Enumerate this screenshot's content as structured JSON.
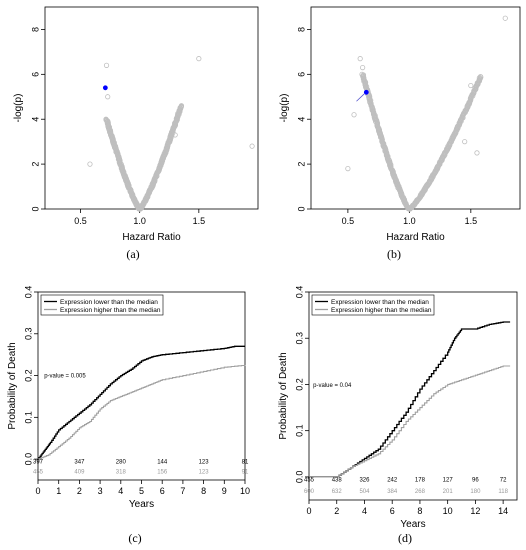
{
  "panels": [
    {
      "caption": "(a)"
    },
    {
      "caption": "(b)"
    },
    {
      "caption": "(c)"
    },
    {
      "caption": "(d)"
    }
  ],
  "chart_data": [
    {
      "type": "scatter",
      "panel": "a",
      "xlabel": "Hazard Ratio",
      "ylabel": "-log(p)",
      "xlim": [
        0.2,
        2.0
      ],
      "ylim": [
        0,
        9
      ],
      "xticks": [
        "0.5",
        "1.0",
        "1.5"
      ],
      "xtick_values": [
        0.5,
        1.0,
        1.5
      ],
      "yticks": [
        "0",
        "2",
        "4",
        "6",
        "8"
      ],
      "ytick_values": [
        0,
        2,
        4,
        6,
        8
      ],
      "v_shape": {
        "center": 1.0,
        "left_end": [
          0.72,
          4.0
        ],
        "right_end": [
          1.35,
          4.6
        ]
      },
      "outliers": [
        [
          0.58,
          2.0
        ],
        [
          0.72,
          6.4
        ],
        [
          0.73,
          5.0
        ],
        [
          0.9,
          1.0
        ],
        [
          1.5,
          6.7
        ],
        [
          1.95,
          2.8
        ],
        [
          1.3,
          3.3
        ]
      ],
      "highlight": {
        "x": 0.71,
        "y": 5.4,
        "color": "#0000ff"
      },
      "point_color": "#bfbfbf"
    },
    {
      "type": "scatter",
      "panel": "b",
      "xlabel": "Hazard Ratio",
      "ylabel": "-log(p)",
      "xlim": [
        0.2,
        1.9
      ],
      "ylim": [
        0,
        9
      ],
      "xticks": [
        "0.5",
        "1.0",
        "1.5"
      ],
      "xtick_values": [
        0.5,
        1.0,
        1.5
      ],
      "yticks": [
        "0",
        "2",
        "4",
        "6",
        "8"
      ],
      "ytick_values": [
        0,
        2,
        4,
        6,
        8
      ],
      "v_shape": {
        "center": 1.0,
        "left_end": [
          0.62,
          6.0
        ],
        "right_end": [
          1.58,
          5.9
        ]
      },
      "outliers": [
        [
          0.5,
          1.8
        ],
        [
          0.6,
          6.7
        ],
        [
          0.62,
          6.3
        ],
        [
          0.55,
          4.2
        ],
        [
          1.5,
          5.5
        ],
        [
          1.45,
          3.0
        ],
        [
          1.78,
          8.5
        ],
        [
          1.55,
          2.5
        ]
      ],
      "highlight": {
        "x": 0.65,
        "y": 5.2,
        "color": "#0000ff",
        "arrow_from": [
          0.57,
          4.8
        ]
      },
      "point_color": "#bfbfbf"
    },
    {
      "type": "line",
      "panel": "c",
      "xlabel": "Years",
      "ylabel": "Probability of Death",
      "xlim": [
        0,
        10
      ],
      "ylim": [
        -0.05,
        0.4
      ],
      "xticks": [
        "0",
        "1",
        "2",
        "3",
        "4",
        "5",
        "6",
        "7",
        "8",
        "9",
        "10"
      ],
      "yticks": [
        "0.0",
        "0.1",
        "0.2",
        "0.3",
        "0.4"
      ],
      "annotation": "p-value = 0.005",
      "legend": "top-left",
      "series": [
        {
          "name": "Expression lower than the median",
          "color": "#000000",
          "x": [
            0,
            0.3,
            0.6,
            1.0,
            1.5,
            2.0,
            2.5,
            3.0,
            3.5,
            4.0,
            4.5,
            5.0,
            5.5,
            6.0,
            7.0,
            8.0,
            9.0,
            9.5,
            10.0
          ],
          "y": [
            0,
            0.02,
            0.04,
            0.07,
            0.09,
            0.11,
            0.13,
            0.155,
            0.18,
            0.2,
            0.215,
            0.235,
            0.245,
            0.25,
            0.255,
            0.26,
            0.265,
            0.27,
            0.27
          ]
        },
        {
          "name": "Expression higher than the median",
          "color": "#a0a0a0",
          "x": [
            0,
            0.5,
            1.0,
            1.5,
            2.0,
            2.5,
            3.0,
            3.5,
            4.0,
            4.5,
            5.0,
            5.5,
            6.0,
            7.0,
            8.0,
            9.0,
            10.0
          ],
          "y": [
            0,
            0.01,
            0.03,
            0.05,
            0.075,
            0.09,
            0.12,
            0.14,
            0.15,
            0.16,
            0.17,
            0.18,
            0.19,
            0.2,
            0.21,
            0.22,
            0.225
          ]
        }
      ],
      "risk_table": {
        "x": [
          0,
          2,
          4,
          6,
          8,
          10
        ],
        "lower": [
          "397",
          "347",
          "280",
          "144",
          "123",
          "81"
        ],
        "higher": [
          "455",
          "409",
          "318",
          "156",
          "123",
          "91"
        ]
      }
    },
    {
      "type": "line",
      "panel": "d",
      "xlabel": "Years",
      "ylabel": "Probability of Death",
      "xlim": [
        0,
        15
      ],
      "ylim": [
        -0.05,
        0.4
      ],
      "xticks": [
        "0",
        "2",
        "4",
        "6",
        "8",
        "10",
        "12",
        "14"
      ],
      "yticks": [
        "0.0",
        "0.1",
        "0.2",
        "0.3",
        "0.4"
      ],
      "annotation": "p-value = 0.04",
      "legend": "top-left",
      "series": [
        {
          "name": "Expression lower than the median",
          "color": "#000000",
          "x": [
            0,
            2.0,
            3.0,
            4.0,
            5.0,
            6.0,
            7.0,
            8.0,
            9.0,
            10.0,
            10.5,
            11.0,
            11.5,
            12.0,
            13.0,
            14.0,
            14.5
          ],
          "y": [
            0,
            0.0,
            0.02,
            0.04,
            0.06,
            0.1,
            0.14,
            0.19,
            0.23,
            0.27,
            0.3,
            0.32,
            0.32,
            0.32,
            0.33,
            0.335,
            0.335
          ]
        },
        {
          "name": "Expression higher than the median",
          "color": "#a0a0a0",
          "x": [
            0,
            2.0,
            3.0,
            4.0,
            5.0,
            6.0,
            7.0,
            8.0,
            9.0,
            10.0,
            11.0,
            12.0,
            13.0,
            14.0,
            14.5
          ],
          "y": [
            0,
            0.0,
            0.02,
            0.035,
            0.05,
            0.08,
            0.12,
            0.15,
            0.18,
            0.2,
            0.21,
            0.22,
            0.23,
            0.24,
            0.24
          ]
        }
      ],
      "risk_table": {
        "x": [
          0,
          2,
          4,
          6,
          8,
          10,
          12,
          14
        ],
        "lower": [
          "455",
          "438",
          "326",
          "242",
          "178",
          "127",
          "96",
          "72"
        ],
        "higher": [
          "600",
          "632",
          "504",
          "384",
          "268",
          "201",
          "180",
          "118"
        ]
      }
    }
  ]
}
